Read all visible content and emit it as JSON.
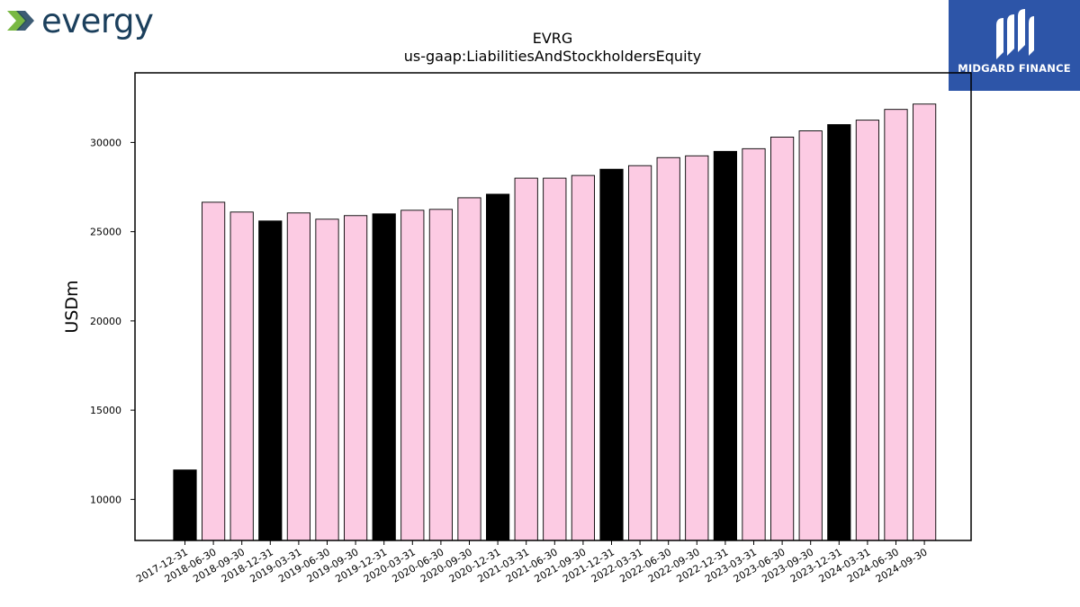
{
  "logos": {
    "left_brand": "evergy",
    "right_brand": "MIDGARD FINANCE",
    "left_colors": [
      "#79b843",
      "#1b3f5c"
    ],
    "right_background": "#2d55a8"
  },
  "chart_data": {
    "type": "bar",
    "title": "EVRG",
    "subtitle": "us-gaap:LiabilitiesAndStockholdersEquity",
    "xlabel": "",
    "ylabel": "USDm",
    "ylim": [
      7700,
      33900
    ],
    "yticks": [
      10000,
      15000,
      20000,
      25000,
      30000
    ],
    "grid": false,
    "colors": {
      "year_end": "#000000",
      "quarter": "#fccbe3",
      "edge": "#000000"
    },
    "categories": [
      "2017-12-31",
      "2018-06-30",
      "2018-09-30",
      "2018-12-31",
      "2019-03-31",
      "2019-06-30",
      "2019-09-30",
      "2019-12-31",
      "2020-03-31",
      "2020-06-30",
      "2020-09-30",
      "2020-12-31",
      "2021-03-31",
      "2021-06-30",
      "2021-09-30",
      "2021-12-31",
      "2022-03-31",
      "2022-06-30",
      "2022-09-30",
      "2022-12-31",
      "2023-03-31",
      "2023-06-30",
      "2023-09-30",
      "2023-12-31",
      "2024-03-31",
      "2024-06-30",
      "2024-09-30"
    ],
    "values": [
      11650,
      26650,
      26100,
      25600,
      26050,
      25700,
      25900,
      26000,
      26200,
      26250,
      26900,
      27100,
      28000,
      28000,
      28150,
      28500,
      28700,
      29150,
      29250,
      29500,
      29650,
      30300,
      30650,
      31000,
      31250,
      31850,
      32150
    ],
    "year_end": [
      true,
      false,
      false,
      true,
      false,
      false,
      false,
      true,
      false,
      false,
      false,
      true,
      false,
      false,
      false,
      true,
      false,
      false,
      false,
      true,
      false,
      false,
      false,
      true,
      false,
      false,
      false
    ]
  }
}
